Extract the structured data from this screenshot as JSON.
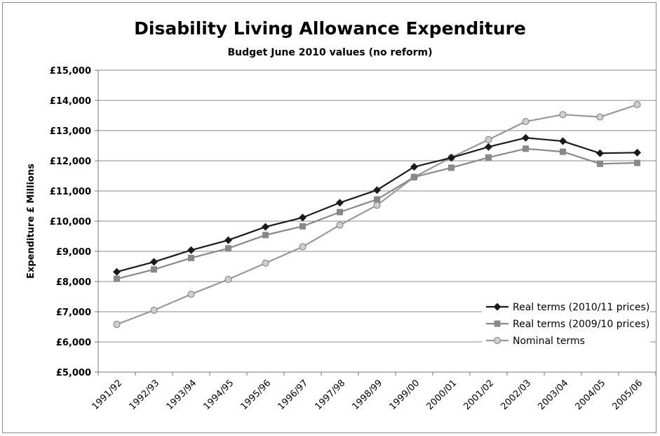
{
  "chart_data": {
    "type": "line",
    "title": "Disability Living Allowance Expenditure",
    "subtitle": "Budget June 2010 values (no reform)",
    "xlabel": "",
    "ylabel": "Expenditure £ Millions",
    "ylim": [
      5000,
      15000
    ],
    "ytick_step": 1000,
    "ytick_labels": [
      "£5,000",
      "£6,000",
      "£7,000",
      "£8,000",
      "£9,000",
      "£10,000",
      "£11,000",
      "£12,000",
      "£13,000",
      "£14,000",
      "£15,000"
    ],
    "categories": [
      "1991/92",
      "1992/93",
      "1993/94",
      "1994/95",
      "1995/96",
      "1996/97",
      "1997/98",
      "1998/99",
      "1999/00",
      "2000/01",
      "2001/02",
      "2002/03",
      "2003/04",
      "2004/05",
      "2005/06"
    ],
    "grid": "horizontal",
    "legend_position": "bottom-right",
    "series": [
      {
        "name": "Real terms (2010/11 prices)",
        "marker": "diamond",
        "color": "#1a1a1a",
        "values": [
          8320,
          8650,
          9040,
          9370,
          9810,
          10120,
          10610,
          11030,
          11800,
          12100,
          12460,
          12760,
          12650,
          12250,
          12270
        ]
      },
      {
        "name": "Real terms (2009/10 prices)",
        "marker": "square",
        "color": "#888888",
        "values": [
          8090,
          8400,
          8780,
          9100,
          9540,
          9830,
          10300,
          10720,
          11460,
          11770,
          12110,
          12400,
          12300,
          11900,
          11930
        ]
      },
      {
        "name": "Nominal terms",
        "marker": "circle",
        "color": "#999999",
        "values": [
          6580,
          7050,
          7580,
          8070,
          8610,
          9150,
          9870,
          10530,
          11460,
          12110,
          12700,
          13300,
          13530,
          13450,
          13860
        ]
      }
    ]
  }
}
